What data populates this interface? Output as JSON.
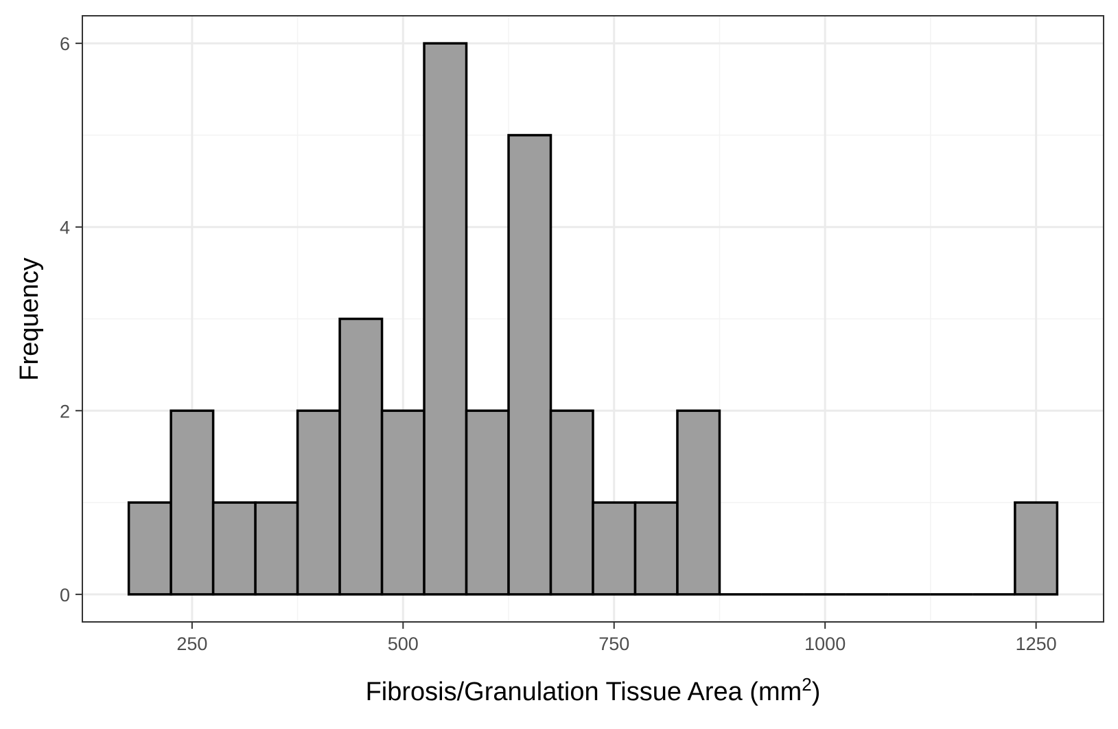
{
  "chart_data": {
    "type": "bar",
    "subtype": "histogram",
    "title": "",
    "xlabel_main": "Fibrosis/Granulation Tissue Area (mm",
    "xlabel_sup": "2",
    "xlabel_close": ")",
    "ylabel": "Frequency",
    "bin_width": 50,
    "bins": [
      {
        "x0": 175,
        "x1": 225,
        "count": 1
      },
      {
        "x0": 225,
        "x1": 275,
        "count": 2
      },
      {
        "x0": 275,
        "x1": 325,
        "count": 1
      },
      {
        "x0": 325,
        "x1": 375,
        "count": 1
      },
      {
        "x0": 375,
        "x1": 425,
        "count": 2
      },
      {
        "x0": 425,
        "x1": 475,
        "count": 3
      },
      {
        "x0": 475,
        "x1": 525,
        "count": 2
      },
      {
        "x0": 525,
        "x1": 575,
        "count": 6
      },
      {
        "x0": 575,
        "x1": 625,
        "count": 2
      },
      {
        "x0": 625,
        "x1": 675,
        "count": 5
      },
      {
        "x0": 675,
        "x1": 725,
        "count": 2
      },
      {
        "x0": 725,
        "x1": 775,
        "count": 1
      },
      {
        "x0": 775,
        "x1": 825,
        "count": 1
      },
      {
        "x0": 825,
        "x1": 875,
        "count": 2
      },
      {
        "x0": 875,
        "x1": 925,
        "count": 0
      },
      {
        "x0": 925,
        "x1": 975,
        "count": 0
      },
      {
        "x0": 975,
        "x1": 1025,
        "count": 0
      },
      {
        "x0": 1025,
        "x1": 1075,
        "count": 0
      },
      {
        "x0": 1075,
        "x1": 1125,
        "count": 0
      },
      {
        "x0": 1125,
        "x1": 1175,
        "count": 0
      },
      {
        "x0": 1175,
        "x1": 1225,
        "count": 0
      },
      {
        "x0": 1225,
        "x1": 1275,
        "count": 1
      }
    ],
    "xlim": [
      120,
      1330
    ],
    "ylim": [
      -0.3,
      6.3
    ],
    "x_ticks": [
      250,
      500,
      750,
      1000,
      1250
    ],
    "x_tick_labels": [
      "250",
      "500",
      "750",
      "1000",
      "1250"
    ],
    "y_ticks": [
      0,
      2,
      4,
      6
    ],
    "y_tick_labels": [
      "0",
      "2",
      "4",
      "6"
    ],
    "x_minor_grid": [
      375,
      625,
      875,
      1125
    ],
    "y_minor_grid": [
      1,
      3,
      5
    ],
    "grid": true,
    "legend": "none",
    "colors": {
      "bar_fill": "#9e9e9e",
      "bar_stroke": "#000000",
      "panel_border": "#333333",
      "grid_major": "#ebebeb",
      "grid_minor": "#f3f3f3",
      "tick_text": "#4d4d4d"
    }
  }
}
